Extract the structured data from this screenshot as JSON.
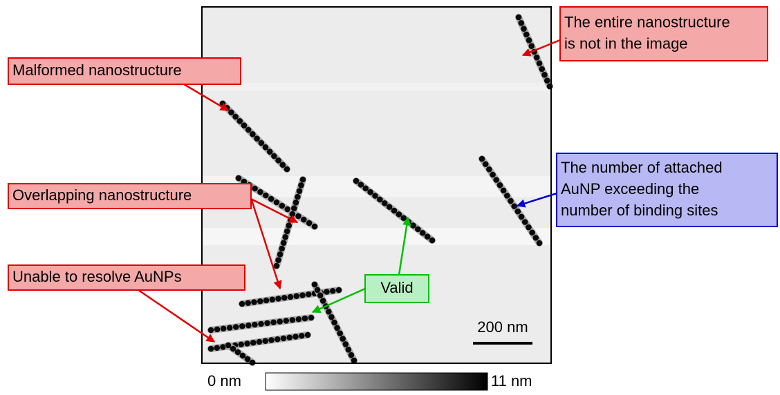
{
  "annotations": [
    {
      "lines": [
        "The entire nanostructure",
        "is not in the image"
      ]
    },
    {
      "lines": [
        "Malformed nanostructure"
      ]
    },
    {
      "lines": [
        "Overlapping nanostructure"
      ]
    },
    {
      "lines": [
        "Unable to resolve AuNPs"
      ]
    },
    {
      "lines": [
        "The number of attached",
        "AuNP exceeding the",
        "number of binding sites"
      ]
    },
    {
      "lines": [
        "Valid"
      ]
    }
  ],
  "scale_bar": {
    "label": "200 nm"
  },
  "colorbar": {
    "min_label": "0 nm",
    "max_label": "11 nm"
  }
}
